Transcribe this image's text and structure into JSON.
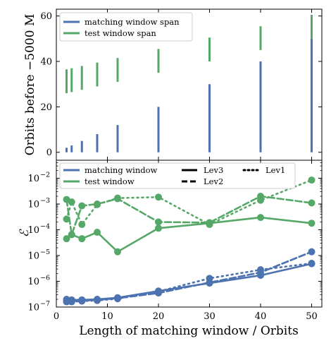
{
  "chart_data": [
    {
      "type": "bar",
      "ylabel": "Orbits before −5000 M",
      "ylim": [
        -3.5,
        63
      ],
      "xlim": [
        0,
        52
      ],
      "yticks": [
        0,
        20,
        40,
        60
      ],
      "colors": {
        "matching": "#4c72b0",
        "test": "#55a868"
      },
      "legend_position": "top-left",
      "series": [
        {
          "name": "matching window span",
          "color": "#4c72b0",
          "segments": [
            {
              "x": 2,
              "low": 0,
              "high": 2
            },
            {
              "x": 3,
              "low": 0,
              "high": 3
            },
            {
              "x": 5,
              "low": 0,
              "high": 5
            },
            {
              "x": 8,
              "low": 0,
              "high": 8
            },
            {
              "x": 12,
              "low": 0,
              "high": 12
            },
            {
              "x": 20,
              "low": 0,
              "high": 20
            },
            {
              "x": 30,
              "low": 0,
              "high": 30
            },
            {
              "x": 40,
              "low": 0,
              "high": 40
            },
            {
              "x": 50,
              "low": 0,
              "high": 50
            }
          ]
        },
        {
          "name": "test window span",
          "color": "#55a868",
          "segments": [
            {
              "x": 2,
              "low": 26,
              "high": 36.5
            },
            {
              "x": 3,
              "low": 26.5,
              "high": 37
            },
            {
              "x": 5,
              "low": 27.5,
              "high": 38
            },
            {
              "x": 8,
              "low": 29,
              "high": 39.5
            },
            {
              "x": 12,
              "low": 31,
              "high": 41.5
            },
            {
              "x": 20,
              "low": 35,
              "high": 45.5
            },
            {
              "x": 30,
              "low": 40,
              "high": 50.5
            },
            {
              "x": 40,
              "low": 45,
              "high": 55.5
            },
            {
              "x": 50,
              "low": 50,
              "high": 60.5
            }
          ]
        }
      ]
    },
    {
      "type": "line",
      "xlabel": "Length of matching window / Orbits",
      "ylabel": "ℰ",
      "yscale": "log",
      "ylim": [
        1e-07,
        0.05
      ],
      "xlim": [
        0,
        52
      ],
      "xticks": [
        0,
        10,
        20,
        30,
        40,
        50
      ],
      "yticks": [
        1e-07,
        1e-06,
        1e-05,
        0.0001,
        0.001,
        0.01
      ],
      "ytick_labels": [
        "10",
        "10",
        "10",
        "10",
        "10",
        "10"
      ],
      "ytick_exponents": [
        "−7",
        "−6",
        "−5",
        "−4",
        "−3",
        "−2"
      ],
      "legend": {
        "window_entries": [
          "matching window",
          "test window"
        ],
        "level_entries": [
          "Lev3",
          "Lev2",
          "Lev1"
        ]
      },
      "x": [
        2,
        3,
        5,
        8,
        12,
        20,
        30,
        40,
        50
      ],
      "series": [
        {
          "window": "matching",
          "level": "Lev3",
          "color": "#4c72b0",
          "values": [
            2e-07,
            1.9e-07,
            1.9e-07,
            2e-07,
            2.3e-07,
            4.2e-07,
            8.5e-07,
            1.7e-06,
            4.8e-06
          ]
        },
        {
          "window": "matching",
          "level": "Lev2",
          "color": "#4c72b0",
          "values": [
            1.7e-07,
            1.7e-07,
            1.75e-07,
            1.9e-07,
            2.2e-07,
            3.5e-07,
            9e-07,
            2.2e-06,
            1.4e-05
          ]
        },
        {
          "window": "matching",
          "level": "Lev1",
          "color": "#4c72b0",
          "values": [
            1.6e-07,
            1.6e-07,
            1.7e-07,
            1.8e-07,
            2.1e-07,
            4e-07,
            1.3e-06,
            2.8e-06,
            5e-06
          ]
        },
        {
          "window": "test",
          "level": "Lev3",
          "color": "#55a868",
          "values": [
            4.5e-05,
            6.5e-05,
            4.5e-05,
            8e-05,
            1.4e-05,
            0.000115,
            0.00018,
            0.0003,
            0.00018
          ]
        },
        {
          "window": "test",
          "level": "Lev2",
          "color": "#55a868",
          "values": [
            0.0015,
            6.5e-05,
            0.00085,
            0.001,
            0.0016,
            0.0002,
            0.00019,
            0.002,
            0.0011
          ]
        },
        {
          "window": "test",
          "level": "Lev1",
          "color": "#55a868",
          "values": [
            0.00026,
            0.0012,
            0.00016,
            0.00095,
            0.0017,
            0.00185,
            0.00016,
            0.0014,
            0.0085
          ]
        }
      ]
    }
  ]
}
